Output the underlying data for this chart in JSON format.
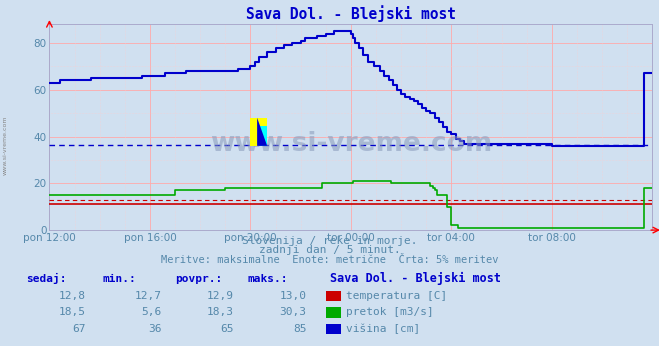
{
  "title": "Sava Dol. - Blejski most",
  "title_color": "#0000cc",
  "bg_color": "#d0e0f0",
  "plot_bg_color": "#d0e0f0",
  "xlim": [
    0,
    288
  ],
  "ylim": [
    0,
    88
  ],
  "yticks": [
    0,
    20,
    40,
    60,
    80
  ],
  "xtick_labels": [
    "pon 12:00",
    "pon 16:00",
    "pon 20:00",
    "tor 00:00",
    "tor 04:00",
    "tor 08:00"
  ],
  "xtick_positions": [
    0,
    48,
    96,
    144,
    192,
    240
  ],
  "avg_temp_line": 12.9,
  "avg_visina_line": 36.5,
  "watermark": "www.si-vreme.com",
  "subtitle1": "Slovenija / reke in morje.",
  "subtitle2": "zadnji dan / 5 minut.",
  "subtitle3": "Meritve: maksimalne  Enote: metrične  Črta: 5% meritev",
  "legend_title": "Sava Dol. - Blejski most",
  "temp_color": "#cc0000",
  "pretok_color": "#00aa00",
  "visina_color": "#0000cc",
  "temp_y": 11.0,
  "temp_avg_y": 12.9,
  "pretok_x": [
    0,
    12,
    24,
    36,
    48,
    60,
    72,
    84,
    90,
    96,
    102,
    108,
    114,
    120,
    130,
    135,
    138,
    139,
    140,
    141,
    142,
    143,
    144,
    145,
    150,
    155,
    160,
    162,
    163,
    164,
    165,
    170,
    175,
    180,
    182,
    183,
    184,
    185,
    190,
    192,
    195,
    200,
    210,
    220,
    230,
    240,
    260,
    270,
    275,
    280,
    284,
    288
  ],
  "pretok_y": [
    15,
    15,
    15,
    15,
    15,
    17,
    17,
    18,
    18,
    18,
    18,
    18,
    18,
    18,
    20,
    20,
    20,
    20,
    20,
    20,
    20,
    20,
    20,
    21,
    21,
    21,
    21,
    21,
    20,
    20,
    20,
    20,
    20,
    20,
    19,
    18,
    17,
    15,
    10,
    2,
    1,
    1,
    1,
    1,
    1,
    1,
    1,
    1,
    1,
    1,
    18,
    18
  ],
  "visina_x": [
    0,
    1,
    5,
    10,
    20,
    24,
    30,
    36,
    40,
    42,
    44,
    46,
    48,
    50,
    55,
    60,
    65,
    72,
    80,
    84,
    88,
    90,
    94,
    96,
    98,
    100,
    104,
    108,
    112,
    116,
    120,
    122,
    124,
    126,
    128,
    130,
    132,
    134,
    136,
    138,
    140,
    141,
    142,
    143,
    144,
    145,
    146,
    148,
    150,
    152,
    155,
    158,
    160,
    162,
    164,
    166,
    168,
    170,
    172,
    174,
    176,
    178,
    180,
    182,
    184,
    186,
    188,
    190,
    192,
    194,
    196,
    198,
    200,
    210,
    220,
    230,
    240,
    250,
    260,
    270,
    274,
    276,
    278,
    280,
    284,
    288
  ],
  "visina_y": [
    63,
    63,
    64,
    64,
    65,
    65,
    65,
    65,
    65,
    65,
    66,
    66,
    66,
    66,
    67,
    67,
    68,
    68,
    68,
    68,
    68,
    69,
    69,
    70,
    72,
    74,
    76,
    78,
    79,
    80,
    81,
    82,
    82,
    82,
    83,
    83,
    84,
    84,
    85,
    85,
    85,
    85,
    85,
    85,
    84,
    82,
    80,
    78,
    75,
    72,
    70,
    68,
    66,
    64,
    62,
    60,
    58,
    57,
    56,
    55,
    54,
    52,
    51,
    50,
    48,
    46,
    44,
    42,
    41,
    39,
    38,
    37,
    37,
    37,
    37,
    37,
    36,
    36,
    36,
    36,
    36,
    36,
    36,
    36,
    67,
    67
  ],
  "table_headers": [
    "sedaj:",
    "min.:",
    "povpr.:",
    "maks.:"
  ],
  "table_data": [
    [
      "12,8",
      "12,7",
      "12,9",
      "13,0",
      "#cc0000",
      "temperatura [C]"
    ],
    [
      "18,5",
      "5,6",
      "18,3",
      "30,3",
      "#00aa00",
      "pretok [m3/s]"
    ],
    [
      "67",
      "36",
      "65",
      "85",
      "#0000cc",
      "višina [cm]"
    ]
  ]
}
